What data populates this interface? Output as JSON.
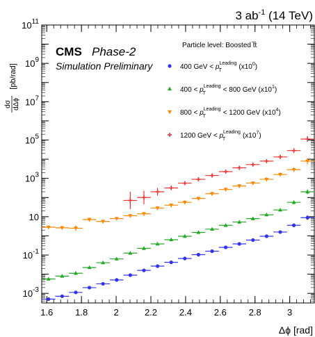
{
  "header": {
    "lumi_label": "3 ab",
    "lumi_exponent": "-1",
    "energy_label": " (14 TeV)"
  },
  "cms_label": "CMS",
  "phase_label": "Phase-2",
  "sim_label": "Simulation Preliminary",
  "legend": {
    "title": "Particle level: Boosted t̅t",
    "entries": [
      {
        "prefix": "400 GeV < ",
        "var": "p",
        "var_sup": "Leading",
        "var_sub": "T",
        "suffix": " (x10",
        "scale_exp": "0",
        "close": ")",
        "marker": "circle",
        "color": "#3333ee"
      },
      {
        "prefix": "400 < ",
        "var": "p",
        "var_sup": "Leading",
        "var_sub": "T",
        "suffix": " < 800 GeV (x10",
        "scale_exp": "1",
        "close": ")",
        "marker": "triangle-up",
        "color": "#22aa22"
      },
      {
        "prefix": "800 < ",
        "var": "p",
        "var_sup": "Leading",
        "var_sub": "T",
        "suffix": " < 1200 GeV (x10",
        "scale_exp": "4",
        "close": ")",
        "marker": "triangle-down",
        "color": "#ff8800"
      },
      {
        "prefix": "1200 GeV < ",
        "var": "p",
        "var_sup": "Leading",
        "var_sub": "T",
        "suffix": " (x10",
        "scale_exp": "7",
        "close": ")",
        "marker": "cross",
        "color": "#ee3333"
      }
    ]
  },
  "chart_data": {
    "type": "scatter",
    "title": "",
    "xlabel": "Δϕ [rad]",
    "ylabel_text": "[pb/rad]",
    "ylabel_fraction_top": "dσ",
    "ylabel_fraction_bottom": "dΔϕ",
    "xlim": [
      1.571,
      3.1416
    ],
    "ylim_log10": [
      -3.5,
      11
    ],
    "y_scale": "log",
    "x_ticks": [
      "1.6",
      "1.8",
      "2",
      "2.2",
      "2.4",
      "2.6",
      "2.8",
      "3"
    ],
    "x_tick_values": [
      1.6,
      1.8,
      2.0,
      2.2,
      2.4,
      2.6,
      2.8,
      3.0
    ],
    "y_ticks": [
      {
        "base": "10",
        "exp": "-3",
        "log": -3
      },
      {
        "base": "10",
        "exp": "-1",
        "log": -1
      },
      {
        "base": "10",
        "exp": "",
        "log": 1
      },
      {
        "base": "10",
        "exp": "3",
        "log": 3
      },
      {
        "base": "10",
        "exp": "5",
        "log": 5
      },
      {
        "base": "10",
        "exp": "7",
        "log": 7
      },
      {
        "base": "10",
        "exp": "9",
        "log": 9
      },
      {
        "base": "10",
        "exp": "11",
        "log": 11
      }
    ],
    "grid": false,
    "legend_position": "top-right",
    "bin_edges": [
      1.5708,
      1.6493,
      1.7279,
      1.8064,
      1.885,
      1.9635,
      2.042,
      2.1206,
      2.1991,
      2.2777,
      2.3562,
      2.4347,
      2.5133,
      2.5918,
      2.6704,
      2.7489,
      2.8274,
      2.906,
      2.9845,
      3.0631,
      3.1416
    ],
    "series": [
      {
        "name": "400 GeV < pT Leading (x10^0)",
        "marker": "circle",
        "color": "#3333ee",
        "log10_values": [
          -3.3,
          -3.15,
          -2.95,
          -2.7,
          -2.5,
          -2.3,
          -2.05,
          -1.8,
          -1.58,
          -1.38,
          -1.18,
          -0.98,
          -0.8,
          -0.6,
          -0.42,
          -0.22,
          -0.02,
          0.2,
          0.55,
          0.95
        ],
        "log10_err": [
          0.05,
          0.05,
          0.05,
          0.05,
          0.05,
          0.05,
          0.05,
          0.05,
          0.05,
          0.05,
          0.05,
          0.05,
          0.05,
          0.05,
          0.05,
          0.05,
          0.05,
          0.05,
          0.1,
          0.12
        ]
      },
      {
        "name": "400 < pT Leading < 800 GeV (x10^1)",
        "marker": "triangle-up",
        "color": "#22aa22",
        "log10_values": [
          -2.25,
          -2.1,
          -1.95,
          -1.65,
          -1.4,
          -1.2,
          -0.9,
          -0.65,
          -0.42,
          -0.2,
          -0.02,
          0.18,
          0.35,
          0.55,
          0.72,
          0.9,
          1.1,
          1.35,
          1.75,
          2.3
        ],
        "log10_err": [
          0.05,
          0.05,
          0.05,
          0.05,
          0.05,
          0.05,
          0.05,
          0.05,
          0.05,
          0.05,
          0.05,
          0.05,
          0.05,
          0.05,
          0.05,
          0.05,
          0.05,
          0.05,
          0.1,
          0.12
        ]
      },
      {
        "name": "800 < pT Leading < 1200 GeV (x10^4)",
        "marker": "triangle-down",
        "color": "#ff8800",
        "log10_values": [
          0.45,
          0.42,
          0.4,
          0.85,
          0.75,
          0.9,
          1.05,
          1.15,
          1.45,
          1.6,
          1.75,
          1.95,
          2.2,
          2.42,
          2.6,
          2.75,
          2.95,
          3.2,
          3.45,
          3.9
        ],
        "log10_err": [
          0.1,
          0.1,
          0.15,
          0.1,
          0.1,
          0.1,
          0.1,
          0.1,
          0.1,
          0.1,
          0.1,
          0.1,
          0.1,
          0.1,
          0.1,
          0.1,
          0.1,
          0.1,
          0.12,
          0.15
        ]
      },
      {
        "name": "1200 GeV < pT Leading (x10^7)",
        "marker": "cross",
        "color": "#ee3333",
        "log10_values": [
          null,
          null,
          null,
          null,
          null,
          null,
          1.85,
          2.0,
          2.3,
          2.5,
          2.75,
          2.95,
          3.15,
          3.35,
          3.55,
          3.72,
          3.9,
          4.12,
          4.45,
          5.05
        ],
        "log10_err": [
          0,
          0,
          0,
          0,
          0,
          0,
          0.45,
          0.35,
          0.2,
          0.12,
          0.1,
          0.1,
          0.1,
          0.1,
          0.1,
          0.1,
          0.1,
          0.1,
          0.12,
          0.15
        ]
      }
    ]
  }
}
